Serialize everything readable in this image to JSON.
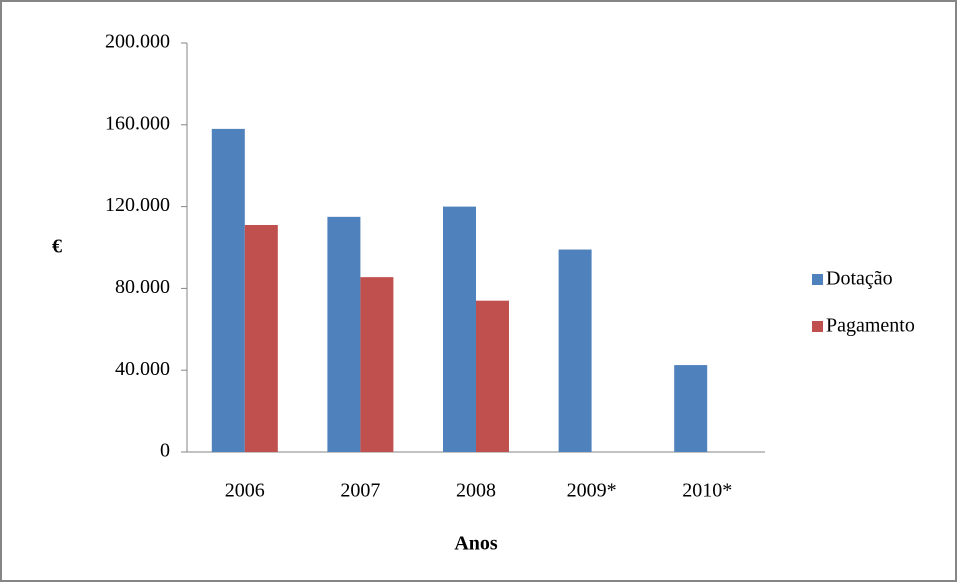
{
  "chart_data": {
    "type": "bar",
    "categories": [
      "2006",
      "2007",
      "2008",
      "2009*",
      "2010*"
    ],
    "series": [
      {
        "name": "Dotação",
        "color": "#4f81bd",
        "values": [
          158000,
          115000,
          120000,
          99000,
          42500
        ]
      },
      {
        "name": "Pagamento",
        "color": "#c0504d",
        "values": [
          111000,
          85500,
          74000,
          null,
          null
        ]
      }
    ],
    "ylim": [
      0,
      200000
    ],
    "yticks": [
      0,
      {
        "value": 40000,
        "label": "40.000"
      },
      {
        "value": 80000,
        "label": "80.000"
      },
      {
        "value": 120000,
        "label": "120.000"
      },
      {
        "value": 160000,
        "label": "160.000"
      },
      {
        "value": 200000,
        "label": "200.000"
      }
    ],
    "y_label": "€",
    "x_label": "Anos",
    "grid": false,
    "legend": "right"
  }
}
